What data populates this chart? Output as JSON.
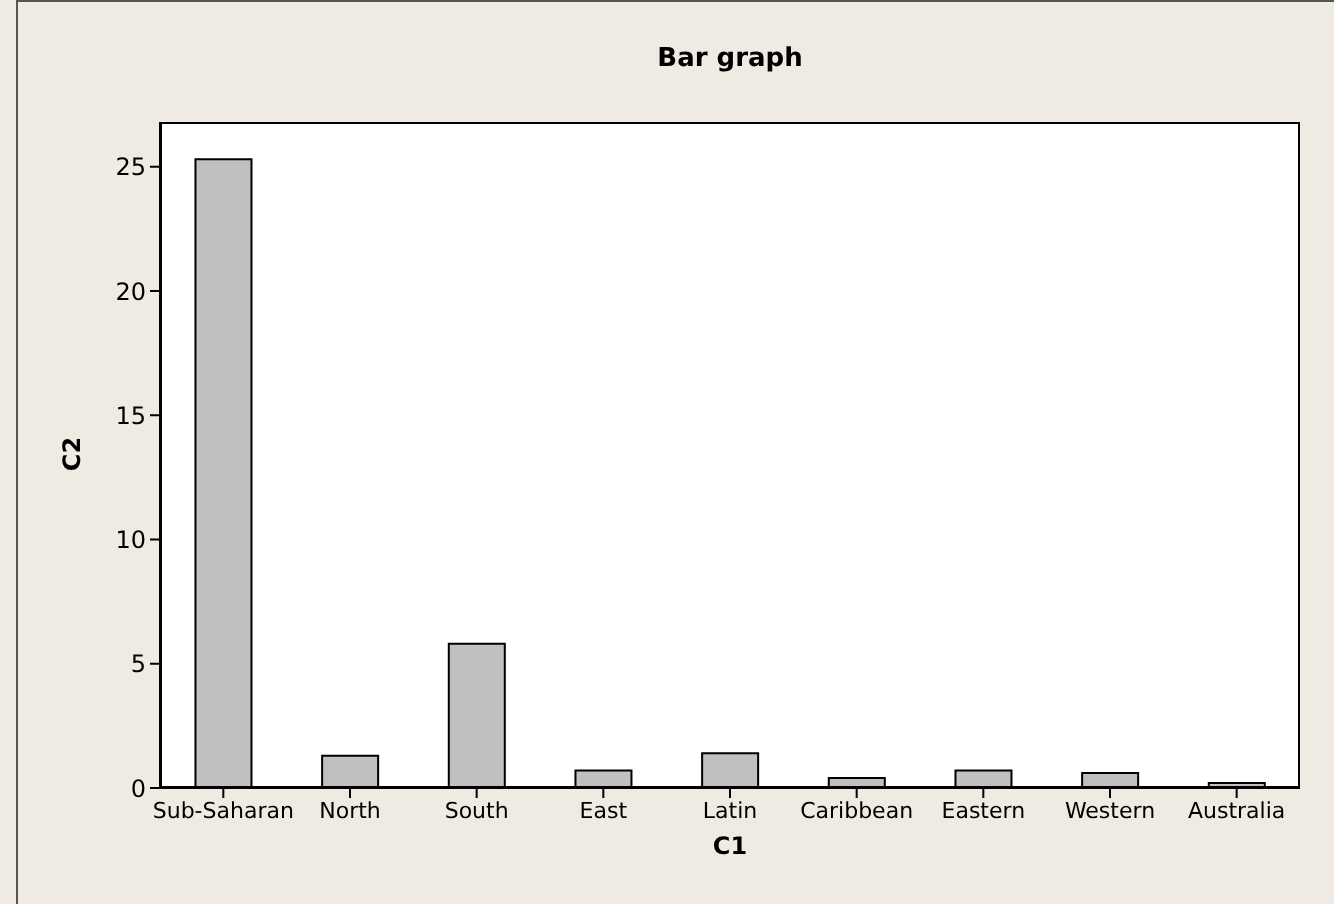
{
  "chart_data": {
    "type": "bar",
    "title": "Bar graph",
    "xlabel": "C1",
    "ylabel": "C2",
    "categories": [
      "Sub-Saharan",
      "North",
      "South",
      "East",
      "Latin",
      "Caribbean",
      "Eastern",
      "Western",
      "Australia"
    ],
    "values": [
      25.3,
      1.3,
      5.8,
      0.7,
      1.4,
      0.4,
      0.7,
      0.6,
      0.2
    ],
    "color": "#c0c0c0",
    "ylim": [
      0,
      26.8
    ],
    "yticks": [
      0,
      5,
      10,
      15,
      20,
      25
    ],
    "grid": false
  }
}
